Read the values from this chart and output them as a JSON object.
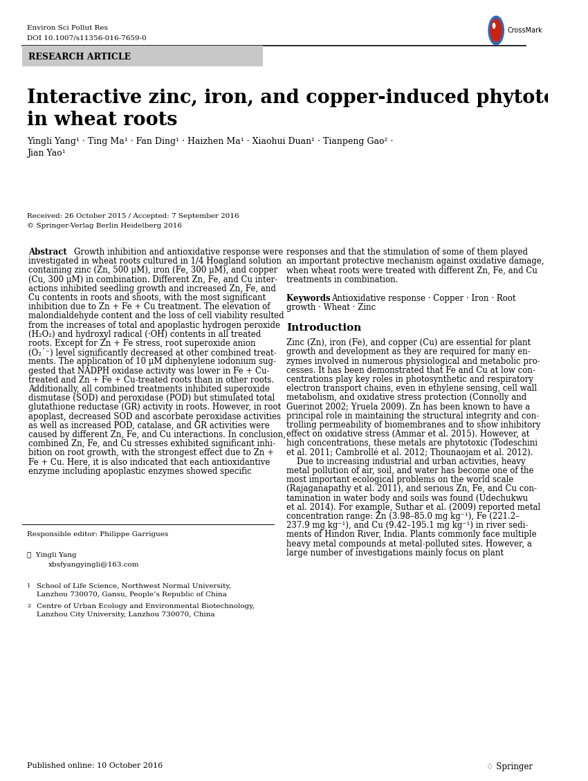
{
  "journal_name": "Environ Sci Pollut Res",
  "doi": "DOI 10.1007/s11356-016-7659-0",
  "section_label": "RESEARCH ARTICLE",
  "title_line1": "Interactive zinc, iron, and copper-induced phytotoxicity",
  "title_line2": "in wheat roots",
  "authors_line1": "Yingli Yang¹ · Ting Ma¹ · Fan Ding¹ · Haizhen Ma¹ · Xiaohui Duan¹ · Tianpeng Gao² ·",
  "authors_line2": "Jian Yao¹",
  "received": "Received: 26 October 2015 / Accepted: 7 September 2016",
  "copyright": "© Springer-Verlag Berlin Heidelberg 2016",
  "abstract_label": "Abstract",
  "abstract_col1": "Growth inhibition and antioxidative response were\ninvestigated in wheat roots cultured in 1/4 Hoagland solution\ncontaining zinc (Zn, 500 μM), iron (Fe, 300 μM), and copper\n(Cu, 300 μM) in combination. Different Zn, Fe, and Cu inter-\nactions inhibited seedling growth and increased Zn, Fe, and\nCu contents in roots and shoots, with the most significant\ninhibition due to Zn + Fe + Cu treatment. The elevation of\nmalondialdehyde content and the loss of cell viability resulted\nfrom the increases of total and apoplastic hydrogen peroxide\n(H₂O₂) and hydroxyl radical (·OH) contents in all treated\nroots. Except for Zn + Fe stress, root superoxide anion\n(O₂˙⁻) level significantly decreased at other combined treat-\nments. The application of 10 μM diphenylene iodonium sug-\ngested that NADPH oxidase activity was lower in Fe + Cu-\ntreated and Zn + Fe + Cu-treated roots than in other roots.\nAdditionally, all combined treatments inhibited superoxide\ndismutase (SOD) and peroxidase (POD) but stimulated total\nglutathione reductase (GR) activity in roots. However, in root\napoplast, decreased SOD and ascorbate peroxidase activities\nas well as increased POD, catalase, and GR activities were\ncaused by different Zn, Fe, and Cu interactions. In conclusion,\ncombined Zn, Fe, and Cu stresses exhibited significant inhi-\nbition on root growth, with the strongest effect due to Zn +\nFe + Cu. Here, it is also indicated that each antioxidantive\nenzyme including apoplastic enzymes showed specific",
  "abstract_col2": "responses and that the stimulation of some of them played\nan important protective mechanism against oxidative damage,\nwhen wheat roots were treated with different Zn, Fe, and Cu\ntreatments in combination.",
  "keywords_label": "Keywords",
  "keywords_text": "Antioxidative response · Copper · Iron · Root\ngrowth · Wheat · Zinc",
  "intro_heading": "Introduction",
  "intro_text": "Zinc (Zn), iron (Fe), and copper (Cu) are essential for plant\ngrowth and development as they are required for many en-\nzymes involved in numerous physiological and metabolic pro-\ncesses. It has been demonstrated that Fe and Cu at low con-\ncentrations play key roles in photosynthetic and respiratory\nelectron transport chains, even in ethylene sensing, cell wall\nmetabolism, and oxidative stress protection (Connolly and\nGuerinot 2002; Yruela 2009). Zn has been known to have a\nprincipal role in maintaining the structural integrity and con-\ntrolling permeability of biomembranes and to show inhibitory\neffect on oxidative stress (Ammar et al. 2015). However, at\nhigh concentrations, these metals are phytotoxic (Todeschini\net al. 2011; Cambrollé et al. 2012; Thounaojam et al. 2012).\n    Due to increasing industrial and urban activities, heavy\nmetal pollution of air, soil, and water has become one of the\nmost important ecological problems on the world scale\n(Rajaganapathy et al. 2011), and serious Zn, Fe, and Cu con-\ntamination in water body and soils was found (Udechukwu\net al. 2014). For example, Suthar et al. (2009) reported metal\nconcentration range: Zn (3.98–85.0 mg kg⁻¹), Fe (221.2–\n237.9 mg kg⁻¹), and Cu (9.42–195.1 mg kg⁻¹) in river sedi-\nments of Hindon River, India. Plants commonly face multiple\nheavy metal compounds at metal-polluted sites. However, a\nlarge number of investigations mainly focus on plant",
  "responsible_editor": "Responsible editor: Philippe Garrigues",
  "contact_name": "Yingli Yang",
  "contact_email": "xbsfyangyingli@163.com",
  "affil1": "School of Life Science, Northwest Normal University,\nLanzhou 730070, Gansu, People’s Republic of China",
  "affil2": "Centre of Urban Ecology and Environmental Biotechnology,\nLanzhou City University, Lanzhou 730070, China",
  "published": "Published online: 10 October 2016",
  "springer_text": "♢ Springer",
  "bg_color": "#ffffff",
  "text_color": "#000000",
  "section_bg": "#c8c8c8",
  "section_text": "#000000"
}
